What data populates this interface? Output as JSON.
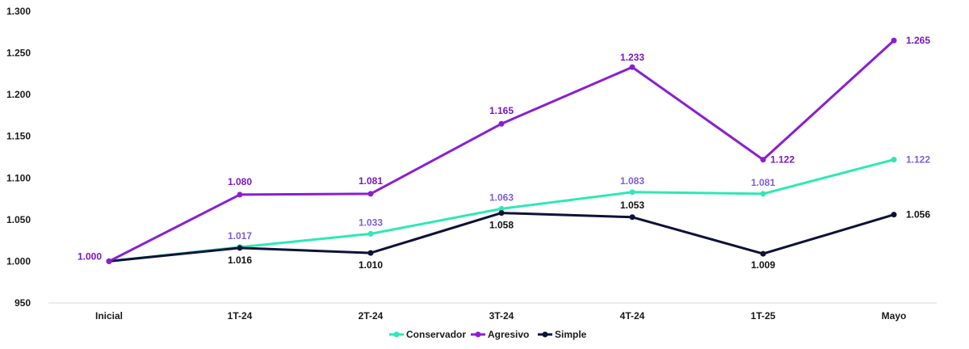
{
  "chart_data": {
    "type": "line",
    "title": "",
    "xlabel": "",
    "ylabel": "",
    "categories": [
      "Inicial",
      "1T-24",
      "2T-24",
      "3T-24",
      "4T-24",
      "1T-25",
      "Mayo"
    ],
    "ylim": [
      950,
      1300
    ],
    "yticks": [
      950,
      1000,
      1050,
      1100,
      1150,
      1200,
      1250,
      1300
    ],
    "ytick_labels": [
      "950",
      "1.000",
      "1.050",
      "1.100",
      "1.150",
      "1.200",
      "1.250",
      "1.300"
    ],
    "grid": false,
    "legend_position": "bottom",
    "series": [
      {
        "name": "Conservador",
        "color": "#2ee8b6",
        "label_color": "#7b5fd6",
        "values": [
          1000,
          1017,
          1033,
          1063,
          1083,
          1081,
          1122
        ],
        "labels": [
          "",
          "1.017",
          "1.033",
          "1.063",
          "1.083",
          "1.081",
          "1.122"
        ]
      },
      {
        "name": "Agresivo",
        "color": "#8a1fd1",
        "label_color": "#7a17c4",
        "values": [
          1000,
          1080,
          1081,
          1165,
          1233,
          1122,
          1265
        ],
        "labels": [
          "1.000",
          "1.080",
          "1.081",
          "1.165",
          "1.233",
          "1.122",
          "1.265"
        ]
      },
      {
        "name": "Simple",
        "color": "#0d1238",
        "label_color": "#111111",
        "values": [
          1000,
          1016,
          1010,
          1058,
          1053,
          1009,
          1056
        ],
        "labels": [
          "",
          "1.016",
          "1.010",
          "1.058",
          "1.053",
          "1.009",
          "1.056"
        ]
      }
    ]
  }
}
